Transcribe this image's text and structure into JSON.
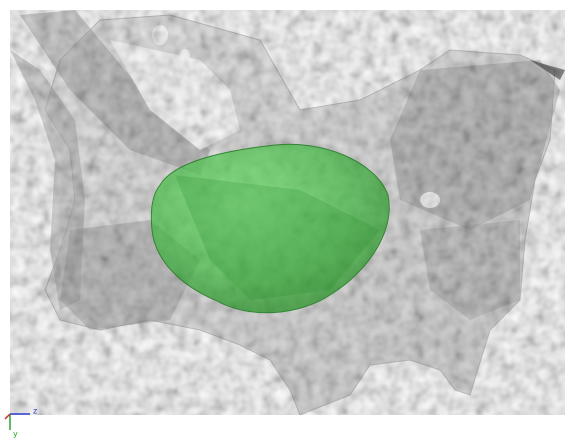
{
  "axes_triad": {
    "z_label": "z",
    "y_label": "y"
  }
}
